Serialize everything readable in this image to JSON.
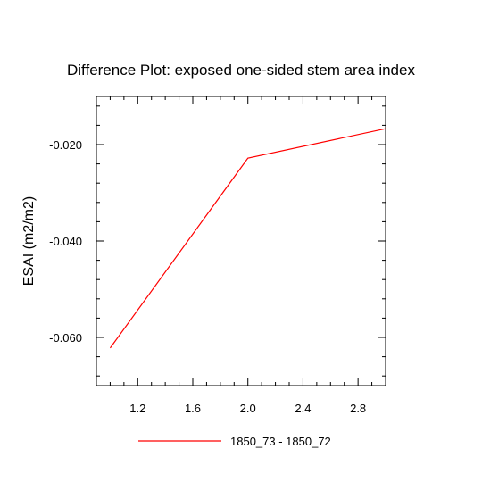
{
  "chart_data": {
    "type": "line",
    "title": "Difference Plot: exposed one-sided stem area index",
    "xlabel": "",
    "ylabel": "ESAI  (m2/m2)",
    "xlim": [
      0.9,
      3.0
    ],
    "ylim": [
      -0.07,
      -0.01
    ],
    "x_ticks": [
      1.2,
      1.6,
      2.0,
      2.4,
      2.8
    ],
    "x_tick_labels": [
      "1.2",
      "1.6",
      "2.0",
      "2.4",
      "2.8"
    ],
    "y_ticks": [
      -0.06,
      -0.04,
      -0.02
    ],
    "y_tick_labels": [
      "-0.060",
      "-0.040",
      "-0.020"
    ],
    "grid": false,
    "legend_position": "bottom-center",
    "series": [
      {
        "name": "1850_73 - 1850_72",
        "color": "#ff0000",
        "x": [
          1.0,
          2.0,
          3.0
        ],
        "y": [
          -0.0622,
          -0.0228,
          -0.0167
        ]
      }
    ]
  }
}
